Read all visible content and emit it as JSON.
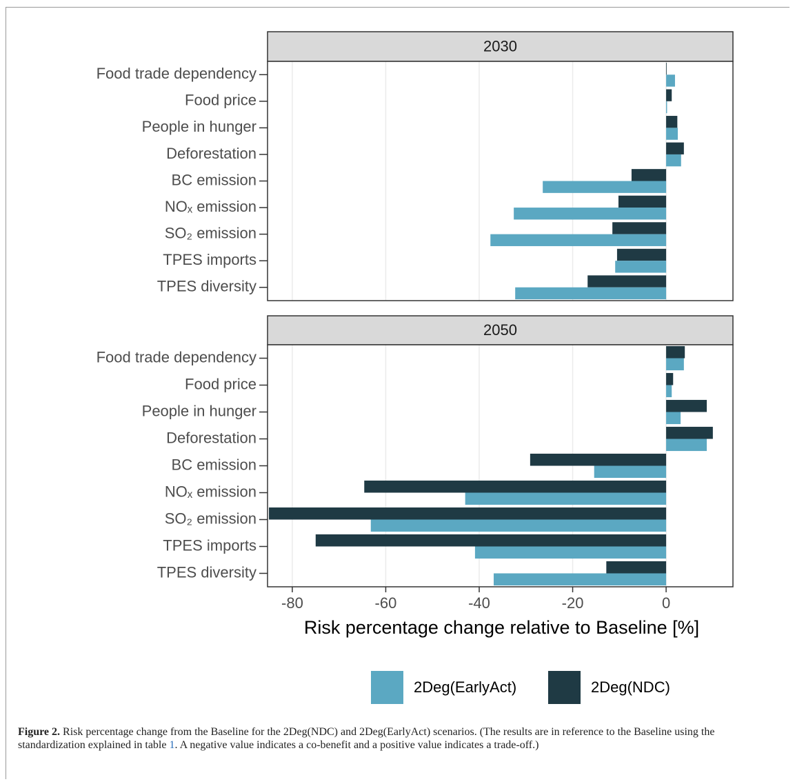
{
  "chart_data": {
    "type": "bar",
    "orientation": "horizontal",
    "categories": [
      "Food trade dependency",
      "Food price",
      "People in hunger",
      "Deforestation",
      "BC emission",
      "NOₓ emission",
      "SO₂ emission",
      "TPES imports",
      "TPES diversity"
    ],
    "series": [
      {
        "name": "2Deg(EarlyAct)",
        "color": "#5ba8c2"
      },
      {
        "name": "2Deg(NDC)",
        "color": "#1f3a44"
      }
    ],
    "panels": [
      {
        "title": "2030",
        "series": [
          {
            "values": [
              1.9,
              0.2,
              2.5,
              3.2,
              -26.4,
              -32.6,
              -37.6,
              -10.9,
              -32.3
            ]
          },
          {
            "values": [
              0.1,
              1.2,
              2.4,
              3.8,
              -7.4,
              -10.2,
              -11.5,
              -10.5,
              -16.8
            ]
          }
        ]
      },
      {
        "title": "2050",
        "series": [
          {
            "values": [
              3.8,
              1.2,
              3.1,
              8.7,
              -15.4,
              -43.0,
              -63.2,
              -40.9,
              -36.9
            ]
          },
          {
            "values": [
              4.0,
              1.5,
              8.7,
              10.0,
              -29.1,
              -64.6,
              -85.0,
              -75.0,
              -12.8
            ]
          }
        ]
      }
    ],
    "xlabel": "Risk percentage change relative to Baseline [%]",
    "xlim": [
      -85.3,
      14.3
    ],
    "xticks": [
      -80,
      -60,
      -40,
      -20,
      0
    ],
    "grid": true,
    "legend": "bottom"
  },
  "caption": {
    "label": "Figure 2.",
    "text_before": "Risk percentage change from the Baseline for the 2Deg(NDC) and 2Deg(EarlyAct) scenarios. (The results are in reference to the Baseline using the standardization explained in table ",
    "link": "1",
    "text_after": ". A negative value indicates a co-benefit and a positive value indicates a trade-off.)"
  }
}
